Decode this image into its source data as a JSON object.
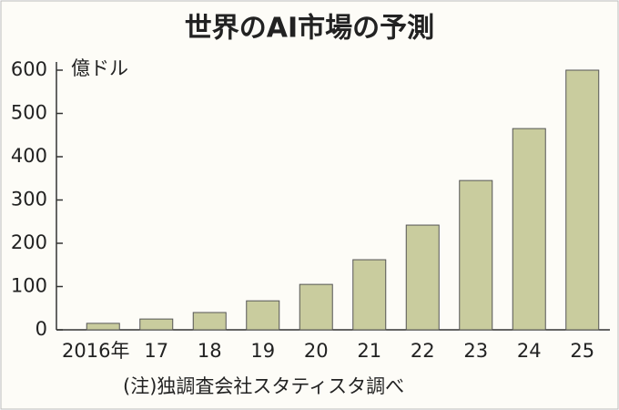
{
  "chart_data": {
    "type": "bar",
    "title": "世界のAI市場の予測",
    "unit": "億ドル",
    "categories": [
      "2016年",
      "17",
      "18",
      "19",
      "20",
      "21",
      "22",
      "23",
      "24",
      "25"
    ],
    "values": [
      15,
      25,
      40,
      67,
      105,
      162,
      242,
      345,
      465,
      600
    ],
    "color": "#c9cc9e",
    "ylim": [
      0,
      600
    ],
    "yticks": [
      0,
      100,
      200,
      300,
      400,
      500,
      600
    ],
    "note": "(注)独調査会社スタティスタ調べ"
  }
}
